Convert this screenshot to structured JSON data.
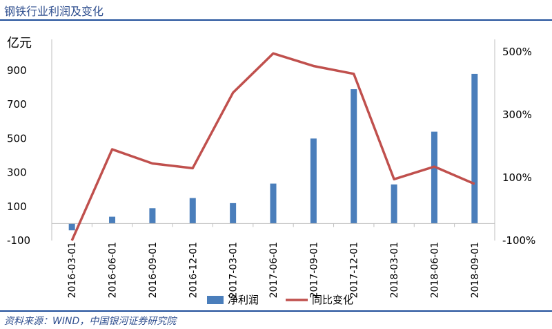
{
  "header": {
    "title": "钢铁行业利润及变化"
  },
  "footer": {
    "source": "资料来源：WIND，中国银河证券研究院"
  },
  "colors": {
    "bar": "#4a7ebb",
    "line": "#c0504d",
    "rule": "#1f4e9a",
    "text": "#2f4f8f"
  },
  "chart_data": {
    "type": "bar",
    "title": "",
    "categories": [
      "2016-03-01",
      "2016-06-01",
      "2016-09-01",
      "2016-12-01",
      "2017-03-01",
      "2017-06-01",
      "2017-09-01",
      "2017-12-01",
      "2018-03-01",
      "2018-06-01",
      "2018-09-01"
    ],
    "y_left": {
      "label": "亿元",
      "ticks": [
        -100,
        100,
        300,
        500,
        700,
        900
      ],
      "range": [
        -100,
        1000
      ]
    },
    "y_right": {
      "ticks": [
        "500%",
        "300%",
        "100%",
        "-100%"
      ],
      "tick_values": [
        500,
        300,
        100,
        -100
      ],
      "range": [
        -100,
        500
      ]
    },
    "series": [
      {
        "name": "净利润",
        "type": "bar",
        "axis": "left",
        "values": [
          -40,
          40,
          90,
          150,
          120,
          235,
          500,
          790,
          230,
          540,
          880
        ]
      },
      {
        "name": "同比变化",
        "type": "line",
        "axis": "right",
        "values": [
          -100,
          190,
          145,
          130,
          370,
          495,
          455,
          430,
          95,
          135,
          80
        ]
      }
    ],
    "legend_position": "bottom",
    "grid": false
  }
}
